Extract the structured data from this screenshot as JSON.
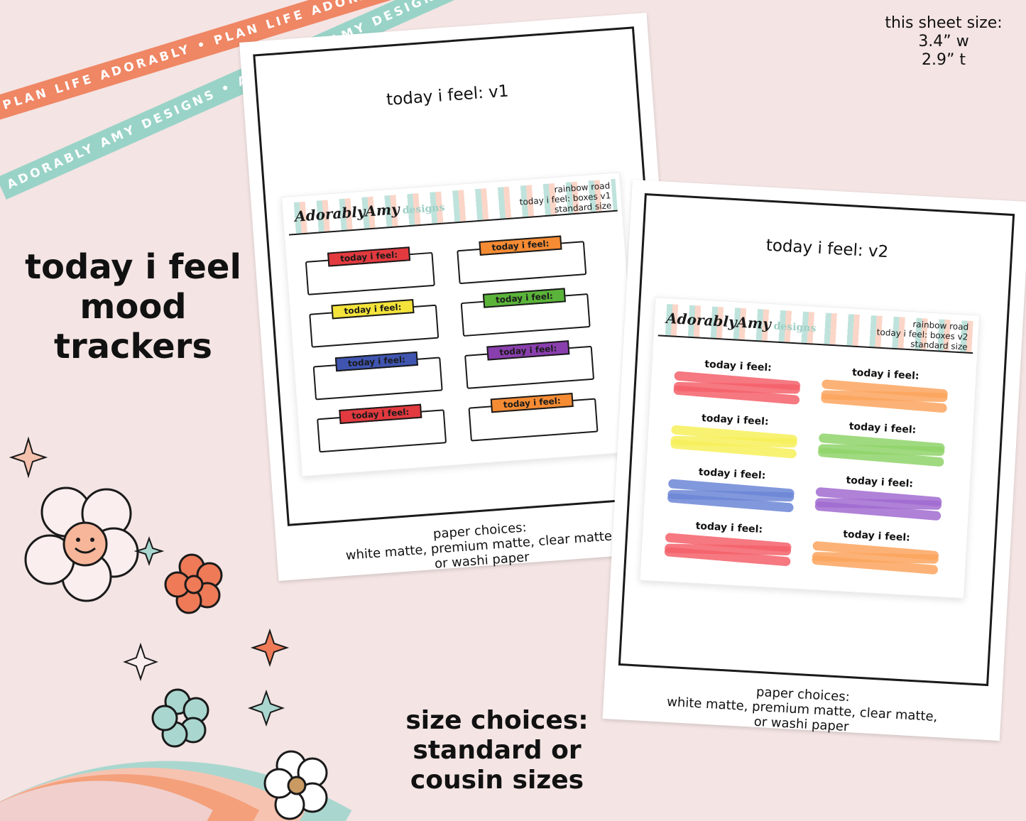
{
  "ribbons": {
    "top": "PLAN LIFE ADORABLY • PLAN LIFE ADORABLY • PLAN LIFE ADORABLY",
    "bottom": "ADORABLY AMY DESIGNS • ADORABLY AMY DESIGNS • ADORABLY AMY DESIGNS"
  },
  "size_info": {
    "title": "this sheet size:",
    "width": "3.4” w",
    "height": "2.9” t"
  },
  "headline": {
    "line1": "today i feel",
    "line2": "mood",
    "line3": "trackers"
  },
  "size_choices": {
    "line1": "size choices:",
    "line2": "standard or",
    "line3": "cousin sizes"
  },
  "separator": "0",
  "sheet_v1": {
    "title": "today i feel: v1",
    "brand": "AdorablyAmy",
    "brand_suffix": "designs",
    "meta": [
      "rainbow road",
      "today i feel: boxes v1",
      "standard size"
    ],
    "label": "today i feel:",
    "colors": [
      "#e23a3f",
      "#f58b33",
      "#f4e33a",
      "#5bb43a",
      "#3f55b0",
      "#8a3fae",
      "#e23a3f",
      "#f58b33"
    ],
    "paper_note": [
      "paper choices:",
      "white matte, premium matte, clear matte,",
      "or washi paper"
    ]
  },
  "sheet_v2": {
    "title": "today i feel: v2",
    "brand": "AdorablyAmy",
    "brand_suffix": "designs",
    "meta": [
      "rainbow road",
      "today i feel: boxes v2",
      "standard size"
    ],
    "label": "today i feel:",
    "colors": [
      "#f4606a",
      "#fba45e",
      "#f7f05a",
      "#8fd36a",
      "#6c86d6",
      "#a16bd0",
      "#f4606a",
      "#fba45e"
    ],
    "paper_note": [
      "paper choices:",
      "white matte, premium matte, clear matte,",
      "or washi paper"
    ]
  }
}
